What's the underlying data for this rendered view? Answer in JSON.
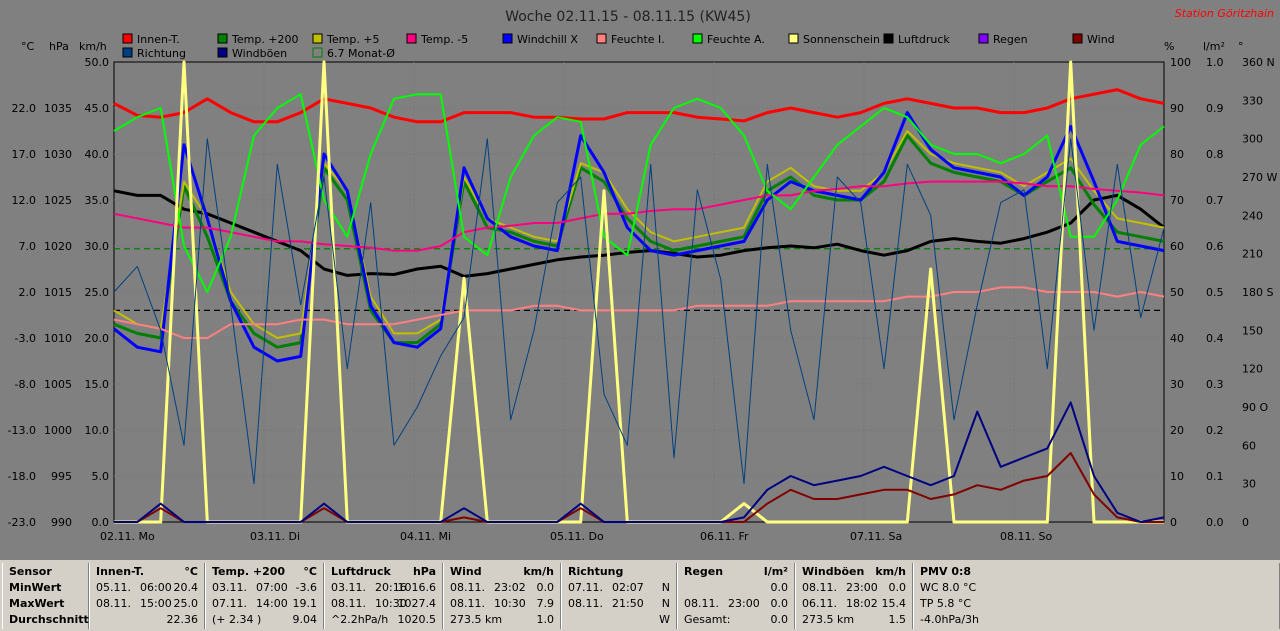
{
  "chart_data": {
    "type": "line",
    "title": "Woche 02.11.15 - 08.11.15 (KW45)",
    "station": "Station Göritzhain",
    "x_labels": [
      "02.11. Mo",
      "03.11. Di",
      "04.11. Mi",
      "05.11. Do",
      "06.11. Fr",
      "07.11. Sa",
      "08.11. So"
    ],
    "axes": {
      "temp_c": {
        "label": "°C",
        "ticks": [
          "22.0",
          "17.0",
          "12.0",
          "7.0",
          "2.0",
          "-3.0",
          "-8.0",
          "-13.0",
          "-18.0",
          "-23.0"
        ],
        "range": [
          -23,
          27
        ]
      },
      "pressure_hpa": {
        "label": "hPa",
        "ticks": [
          "1035",
          "1030",
          "1025",
          "1020",
          "1015",
          "1010",
          "1005",
          "1000",
          "995",
          "990"
        ],
        "range": [
          990,
          1040
        ]
      },
      "wind_kmh": {
        "label": "km/h",
        "ticks": [
          "50.0",
          "45.0",
          "40.0",
          "35.0",
          "30.0",
          "25.0",
          "20.0",
          "15.0",
          "10.0",
          "5.0",
          "0.0"
        ],
        "range": [
          0,
          50
        ]
      },
      "humidity_pct": {
        "label": "%",
        "ticks": [
          "100",
          "90",
          "80",
          "70",
          "60",
          "50",
          "40",
          "30",
          "20",
          "10",
          "0"
        ],
        "range": [
          0,
          100
        ]
      },
      "rain_lm2": {
        "label": "l/m²",
        "ticks": [
          "1.0",
          "0.9",
          "0.8",
          "0.7",
          "0.6",
          "0.5",
          "0.4",
          "0.3",
          "0.2",
          "0.1",
          "0.0"
        ],
        "range": [
          0,
          1
        ]
      },
      "direction_deg": {
        "label": "°",
        "ticks": [
          "360 N",
          "330",
          "300",
          "270 W",
          "240",
          "210",
          "180 S",
          "150",
          "120",
          "90 O",
          "60",
          "30",
          "0"
        ],
        "range": [
          0,
          360
        ]
      }
    },
    "legend": [
      {
        "name": "Innen-T.",
        "color": "#ff0000"
      },
      {
        "name": "Temp. +200",
        "color": "#008000"
      },
      {
        "name": "Temp. +5",
        "color": "#c0c000"
      },
      {
        "name": "Temp. -5",
        "color": "#ff0080"
      },
      {
        "name": "Windchill X",
        "color": "#0000ff"
      },
      {
        "name": "Feuchte I.",
        "color": "#ff8080"
      },
      {
        "name": "Feuchte A.",
        "color": "#00ff00"
      },
      {
        "name": "Sonnenschein",
        "color": "#ffff80"
      },
      {
        "name": "Luftdruck",
        "color": "#000000"
      },
      {
        "name": "Regen",
        "color": "#8000ff"
      },
      {
        "name": "Wind",
        "color": "#800000"
      },
      {
        "name": "Richtung",
        "color": "#004080"
      },
      {
        "name": "Windböen",
        "color": "#000080"
      },
      {
        "name": "6.7 Monat-Ø",
        "color": "#008000"
      }
    ],
    "reference_lines": [
      {
        "name": "6.7 Monat-Ø",
        "value_c": 6.7,
        "color": "#008000",
        "style": "dashed"
      },
      {
        "name": "zero",
        "value_c": 0,
        "color": "#000000",
        "style": "dashed"
      }
    ],
    "series": [
      {
        "name": "Innen-T.",
        "axis": "temp_c",
        "color": "#ff0000",
        "width": 3,
        "values": [
          22.5,
          21.2,
          21.0,
          21.5,
          23.0,
          21.5,
          20.5,
          20.5,
          21.5,
          23.0,
          22.5,
          22.0,
          21.0,
          20.5,
          20.5,
          21.5,
          21.5,
          21.5,
          21.0,
          21.0,
          20.8,
          20.8,
          21.5,
          21.5,
          21.5,
          21.0,
          20.8,
          20.6,
          21.5,
          22.0,
          21.5,
          21.0,
          21.5,
          22.5,
          23.0,
          22.5,
          22.0,
          22.0,
          21.5,
          21.5,
          22.0,
          23.0,
          23.5,
          24.0,
          23.0,
          22.5
        ]
      },
      {
        "name": "Luftdruck",
        "axis": "pressure_hpa",
        "color": "#000000",
        "width": 3,
        "values": [
          1026.0,
          1025.5,
          1025.5,
          1024.0,
          1023.5,
          1022.5,
          1021.5,
          1020.5,
          1019.5,
          1017.5,
          1016.8,
          1017.0,
          1016.9,
          1017.5,
          1017.8,
          1016.7,
          1017.0,
          1017.5,
          1018.0,
          1018.5,
          1018.8,
          1019.0,
          1019.3,
          1019.5,
          1019.2,
          1018.8,
          1019.0,
          1019.5,
          1019.8,
          1020.0,
          1019.8,
          1020.2,
          1019.5,
          1019.0,
          1019.5,
          1020.5,
          1020.8,
          1020.5,
          1020.3,
          1020.8,
          1021.5,
          1022.5,
          1025.0,
          1025.5,
          1024.0,
          1022.0
        ]
      },
      {
        "name": "Temp. +200",
        "axis": "temp_c",
        "color": "#008000",
        "width": 3,
        "values": [
          -1.5,
          -2.5,
          -3.0,
          13.5,
          8.0,
          1.0,
          -2.5,
          -4.0,
          -3.5,
          15.5,
          12.0,
          0.0,
          -3.5,
          -3.5,
          -1.5,
          14.0,
          9.0,
          8.5,
          7.5,
          7.0,
          15.5,
          14.0,
          10.0,
          7.5,
          6.5,
          7.0,
          7.5,
          8.0,
          13.0,
          14.5,
          12.5,
          12.0,
          12.0,
          14.0,
          19.0,
          16.0,
          15.0,
          14.5,
          14.0,
          12.5,
          14.0,
          15.5,
          11.5,
          8.5,
          8.0,
          7.5
        ]
      },
      {
        "name": "Temp. +5",
        "axis": "temp_c",
        "color": "#c0c000",
        "width": 2,
        "values": [
          0.0,
          -1.5,
          -2.0,
          14.0,
          10.0,
          2.0,
          -1.5,
          -3.0,
          -2.5,
          16.0,
          13.0,
          1.5,
          -2.5,
          -2.5,
          -1.0,
          14.5,
          10.0,
          9.0,
          8.0,
          7.5,
          16.0,
          15.0,
          11.0,
          8.5,
          7.5,
          8.0,
          8.5,
          9.0,
          14.0,
          15.5,
          13.5,
          13.0,
          13.0,
          15.0,
          19.5,
          17.0,
          16.0,
          15.5,
          15.0,
          13.5,
          15.0,
          16.5,
          13.0,
          10.0,
          9.5,
          9.0
        ]
      },
      {
        "name": "Windchill X",
        "axis": "temp_c",
        "color": "#0000ff",
        "width": 3,
        "values": [
          -2.0,
          -4.0,
          -4.5,
          18.0,
          10.0,
          1.0,
          -4.0,
          -5.5,
          -5.0,
          17.0,
          13.0,
          0.5,
          -3.5,
          -4.0,
          -2.0,
          15.5,
          10.0,
          8.0,
          7.0,
          6.5,
          19.0,
          15.0,
          9.0,
          6.5,
          6.0,
          6.5,
          7.0,
          7.5,
          12.0,
          14.0,
          13.0,
          12.5,
          12.0,
          15.0,
          21.5,
          17.5,
          15.5,
          15.0,
          14.5,
          12.5,
          14.5,
          20.0,
          14.0,
          7.5,
          7.0,
          6.5
        ]
      },
      {
        "name": "Temp. -5",
        "axis": "temp_c",
        "color": "#ff0080",
        "width": 2,
        "values": [
          10.5,
          10.0,
          9.5,
          9.0,
          9.0,
          8.5,
          8.0,
          7.5,
          7.5,
          7.2,
          7.0,
          6.8,
          6.5,
          6.5,
          7.0,
          8.5,
          9.0,
          9.2,
          9.5,
          9.5,
          10.0,
          10.5,
          10.5,
          10.8,
          11.0,
          11.0,
          11.5,
          12.0,
          12.5,
          12.5,
          13.0,
          13.2,
          13.5,
          13.5,
          13.8,
          14.0,
          14.0,
          14.0,
          14.0,
          13.8,
          13.5,
          13.5,
          13.2,
          13.0,
          12.8,
          12.5
        ]
      },
      {
        "name": "Feuchte I.",
        "axis": "humidity_pct",
        "color": "#ff8080",
        "width": 2,
        "values": [
          44,
          43,
          42,
          40,
          40,
          43,
          43,
          43,
          44,
          44,
          43,
          43,
          43,
          44,
          45,
          46,
          46,
          46,
          47,
          47,
          46,
          46,
          46,
          46,
          46,
          47,
          47,
          47,
          47,
          48,
          48,
          48,
          48,
          48,
          49,
          49,
          50,
          50,
          51,
          51,
          50,
          50,
          50,
          49,
          50,
          49
        ]
      },
      {
        "name": "Feuchte A.",
        "axis": "humidity_pct",
        "color": "#00ff00",
        "width": 2,
        "values": [
          85,
          88,
          90,
          60,
          50,
          62,
          84,
          90,
          93,
          70,
          62,
          80,
          92,
          93,
          93,
          62,
          58,
          75,
          84,
          88,
          87,
          62,
          58,
          82,
          90,
          92,
          90,
          84,
          72,
          68,
          75,
          82,
          86,
          90,
          88,
          82,
          80,
          80,
          78,
          80,
          84,
          62,
          62,
          70,
          82,
          86
        ]
      },
      {
        "name": "Sonnenschein",
        "axis": "humidity_pct",
        "color": "#ffff80",
        "width": 3,
        "values": [
          0,
          0,
          0,
          100,
          0,
          0,
          0,
          0,
          0,
          100,
          0,
          0,
          0,
          0,
          0,
          53,
          0,
          0,
          0,
          0,
          0,
          72,
          0,
          0,
          0,
          0,
          0,
          4,
          0,
          0,
          0,
          0,
          0,
          0,
          0,
          55,
          0,
          0,
          0,
          0,
          0,
          100,
          0,
          0,
          0,
          0
        ]
      },
      {
        "name": "Wind",
        "axis": "wind_kmh",
        "color": "#800000",
        "width": 2,
        "values": [
          0,
          0,
          1.5,
          0,
          0,
          0,
          0,
          0,
          0,
          1.5,
          0,
          0,
          0,
          0,
          0,
          0.5,
          0,
          0,
          0,
          0,
          1.5,
          0,
          0,
          0,
          0,
          0,
          0,
          0,
          2.0,
          3.5,
          2.5,
          2.5,
          3.0,
          3.5,
          3.5,
          2.5,
          3.0,
          4.0,
          3.5,
          4.5,
          5.0,
          7.5,
          3.0,
          0.5,
          0,
          0
        ]
      },
      {
        "name": "Windböen",
        "axis": "wind_kmh",
        "color": "#000080",
        "width": 2,
        "values": [
          0,
          0,
          2.0,
          0,
          0,
          0,
          0,
          0,
          0,
          2.0,
          0,
          0,
          0,
          0,
          0,
          1.5,
          0,
          0,
          0,
          0,
          2.0,
          0,
          0,
          0,
          0,
          0,
          0,
          0.5,
          3.5,
          5.0,
          4.0,
          4.5,
          5.0,
          6.0,
          5.0,
          4.0,
          5.0,
          12.0,
          6.0,
          7.0,
          8.0,
          13.0,
          5.0,
          1.0,
          0,
          0.5
        ]
      },
      {
        "name": "Richtung",
        "axis": "direction_deg",
        "color": "#004080",
        "width": 1,
        "values": [
          180,
          200,
          150,
          60,
          300,
          170,
          30,
          280,
          170,
          270,
          120,
          250,
          60,
          90,
          130,
          160,
          300,
          80,
          150,
          250,
          270,
          100,
          60,
          280,
          50,
          260,
          190,
          30,
          280,
          150,
          80,
          270,
          250,
          120,
          280,
          240,
          80,
          170,
          250,
          260,
          120,
          300,
          150,
          280,
          160,
          230
        ]
      }
    ]
  },
  "stats": {
    "sensor": {
      "header": "Sensor",
      "rows": [
        "MinWert",
        "MaxWert",
        "Durchschnitt"
      ]
    },
    "innen": {
      "header": "Innen-T.",
      "unit": "°C",
      "rows": [
        [
          "05.11.",
          "06:00",
          "20.4"
        ],
        [
          "08.11.",
          "15:00",
          "25.0"
        ],
        [
          "",
          "",
          "22.36"
        ]
      ]
    },
    "temp": {
      "header": "Temp. +200",
      "unit": "°C",
      "rows": [
        [
          "03.11.",
          "07:00",
          "-3.6"
        ],
        [
          "07.11.",
          "14:00",
          "19.1"
        ],
        [
          "(+ 2.34 )",
          "",
          "9.04"
        ]
      ]
    },
    "luftdruck": {
      "header": "Luftdruck",
      "unit": "hPa",
      "rows": [
        [
          "03.11.",
          "20:16",
          "1016.6"
        ],
        [
          "08.11.",
          "10:30",
          "1027.4"
        ],
        [
          "^2.2hPa/h",
          "",
          "1020.5"
        ]
      ]
    },
    "wind": {
      "header": "Wind",
      "unit": "km/h",
      "rows": [
        [
          "08.11.",
          "23:02",
          "0.0"
        ],
        [
          "08.11.",
          "10:30",
          "7.9"
        ],
        [
          "273.5 km",
          "",
          "1.0"
        ]
      ]
    },
    "richtung": {
      "header": "Richtung",
      "unit": "",
      "rows": [
        [
          "07.11.",
          "02:07",
          "N"
        ],
        [
          "08.11.",
          "21:50",
          "N"
        ],
        [
          "",
          "",
          "W"
        ]
      ]
    },
    "regen": {
      "header": "Regen",
      "unit": "l/m²",
      "rows": [
        [
          "",
          "",
          "0.0"
        ],
        [
          "08.11.",
          "23:00",
          "0.0"
        ],
        [
          "Gesamt:",
          "",
          "0.0"
        ]
      ]
    },
    "boeen": {
      "header": "Windböen",
      "unit": "km/h",
      "rows": [
        [
          "08.11.",
          "23:00",
          "0.0"
        ],
        [
          "06.11.",
          "18:02",
          "15.4"
        ],
        [
          "273.5 km",
          "",
          "1.5"
        ]
      ]
    },
    "pmv": {
      "header": "PMV 0:8",
      "rows": [
        "WC 8.0 °C",
        "TP 5.8 °C",
        "-4.0hPa/3h"
      ]
    }
  }
}
